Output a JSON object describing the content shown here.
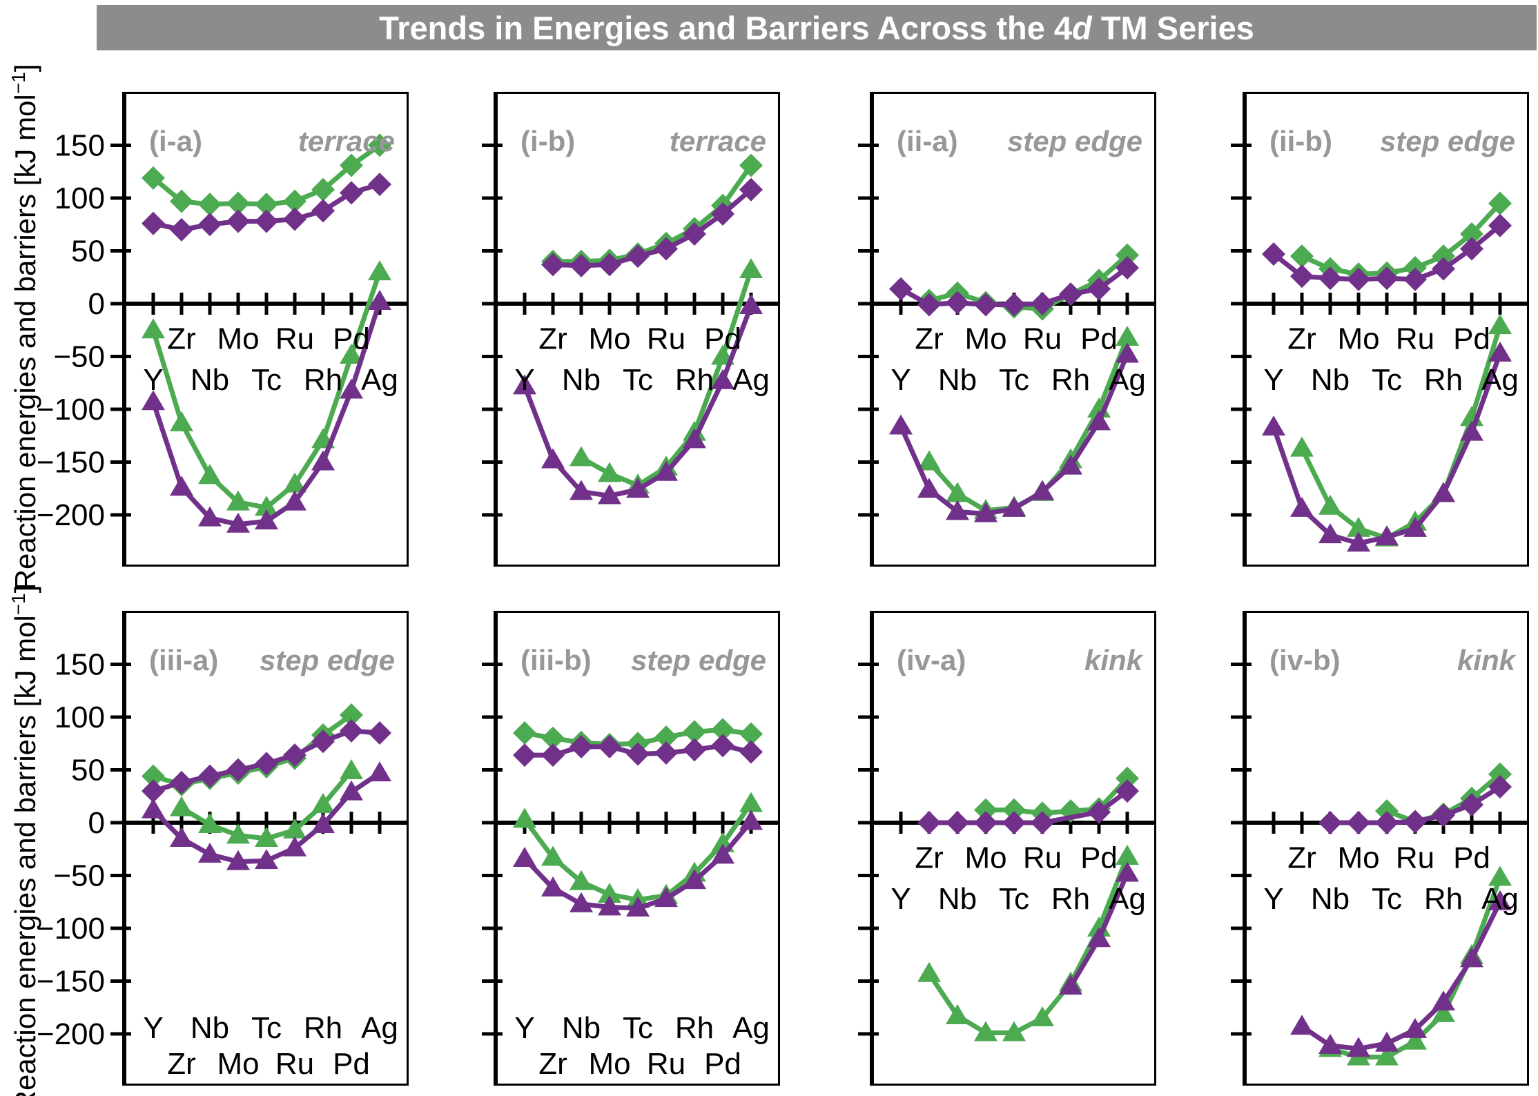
{
  "title": {
    "prefix": "Trends in Energies and Barriers Across the 4",
    "italic": "d",
    "suffix": " TM Series"
  },
  "y_axis_label": {
    "main": "Reaction energies and barriers [kJ mol",
    "sup": "−1",
    "close": "]"
  },
  "colors": {
    "green": "#4CAA50",
    "purple": "#713089",
    "frame": "#000000",
    "label_gray": "#979797",
    "title_bg": "#8C8C8C",
    "title_fg": "#FFFFFF"
  },
  "chart_data": {
    "type": "line",
    "categories": [
      "Y",
      "Zr",
      "Nb",
      "Mo",
      "Tc",
      "Ru",
      "Rh",
      "Pd",
      "Ag"
    ],
    "xlabel": "",
    "ylabel": "Reaction energies and barriers [kJ mol−1]",
    "ylim": [
      -247,
      200
    ],
    "grid": false,
    "legend": "none",
    "y_ticks": [
      {
        "v": 150,
        "label": "150"
      },
      {
        "v": 100,
        "label": "100"
      },
      {
        "v": 50,
        "label": "50"
      },
      {
        "v": 0,
        "label": "0"
      },
      {
        "v": -50,
        "label": "−50"
      },
      {
        "v": -100,
        "label": "−100"
      },
      {
        "v": -150,
        "label": "−150"
      },
      {
        "v": -200,
        "label": "−200"
      }
    ],
    "subplots": [
      {
        "id": "(i-a)",
        "site": "terrace",
        "label_position": "axis",
        "show_y_tick_labels": true,
        "series": [
          {
            "name": "green-triangles",
            "marker": "triangle",
            "color": "green",
            "values": [
              -25,
              -113,
              -163,
              -188,
              -193,
              -171,
              -129,
              -49,
              30
            ]
          },
          {
            "name": "purple-triangles",
            "marker": "triangle",
            "color": "purple",
            "values": [
              -93,
              -174,
              -203,
              -209,
              -206,
              -188,
              -150,
              -82,
              2
            ]
          },
          {
            "name": "green-diamonds",
            "marker": "diamond",
            "color": "green",
            "values": [
              119,
              97,
              94,
              95,
              94,
              97,
              108,
              131,
              150
            ]
          },
          {
            "name": "purple-diamonds",
            "marker": "diamond",
            "color": "purple",
            "values": [
              76,
              70,
              75,
              78,
              78,
              80,
              88,
              105,
              113
            ]
          }
        ]
      },
      {
        "id": "(i-b)",
        "site": "terrace",
        "label_position": "axis",
        "show_y_tick_labels": false,
        "series": [
          {
            "name": "green-triangles",
            "marker": "triangle",
            "color": "green",
            "values": [
              null,
              null,
              -146,
              -161,
              -172,
              -155,
              -122,
              -50,
              32
            ]
          },
          {
            "name": "purple-triangles",
            "marker": "triangle",
            "color": "purple",
            "values": [
              -78,
              -148,
              -178,
              -182,
              -176,
              -160,
              -129,
              -73,
              -2
            ]
          },
          {
            "name": "green-diamonds",
            "marker": "diamond",
            "color": "green",
            "values": [
              null,
              40,
              40,
              41,
              47,
              57,
              71,
              93,
              131
            ]
          },
          {
            "name": "purple-diamonds",
            "marker": "diamond",
            "color": "purple",
            "values": [
              null,
              37,
              36,
              37,
              45,
              52,
              66,
              85,
              108
            ]
          }
        ]
      },
      {
        "id": "(ii-a)",
        "site": "step edge",
        "label_position": "axis",
        "show_y_tick_labels": false,
        "series": [
          {
            "name": "green-triangles",
            "marker": "triangle",
            "color": "green",
            "values": [
              null,
              -150,
              -180,
              -196,
              -193,
              -179,
              -148,
              -100,
              -32
            ]
          },
          {
            "name": "purple-triangles",
            "marker": "triangle",
            "color": "purple",
            "values": [
              -116,
              -176,
              -197,
              -199,
              -194,
              -178,
              -154,
              -112,
              -48
            ]
          },
          {
            "name": "green-diamonds",
            "marker": "diamond",
            "color": "green",
            "values": [
              null,
              3,
              10,
              1,
              -3,
              -5,
              9,
              22,
              46
            ]
          },
          {
            "name": "purple-diamonds",
            "marker": "diamond",
            "color": "purple",
            "values": [
              14,
              -1,
              1,
              -1,
              -1,
              0,
              9,
              14,
              34
            ]
          }
        ]
      },
      {
        "id": "(ii-b)",
        "site": "step edge",
        "label_position": "axis",
        "show_y_tick_labels": false,
        "series": [
          {
            "name": "green-triangles",
            "marker": "triangle",
            "color": "green",
            "values": [
              null,
              -137,
              -192,
              -213,
              -222,
              -207,
              -180,
              -108,
              -21
            ]
          },
          {
            "name": "purple-triangles",
            "marker": "triangle",
            "color": "purple",
            "values": [
              -117,
              -194,
              -219,
              -227,
              -221,
              -213,
              -180,
              -122,
              -47
            ]
          },
          {
            "name": "green-diamonds",
            "marker": "diamond",
            "color": "green",
            "values": [
              null,
              45,
              33,
              28,
              29,
              34,
              45,
              66,
              95
            ]
          },
          {
            "name": "purple-diamonds",
            "marker": "diamond",
            "color": "purple",
            "values": [
              47,
              26,
              24,
              23,
              24,
              23,
              33,
              52,
              74
            ]
          }
        ]
      },
      {
        "id": "(iii-a)",
        "site": "step edge",
        "label_position": "bottom",
        "show_y_tick_labels": true,
        "series": [
          {
            "name": "green-triangles",
            "marker": "triangle",
            "color": "green",
            "values": [
              null,
              14,
              -2,
              -12,
              -15,
              -7,
              17,
              49,
              null
            ]
          },
          {
            "name": "purple-triangles",
            "marker": "triangle",
            "color": "purple",
            "values": [
              12,
              -15,
              -30,
              -37,
              -36,
              -24,
              -2,
              29,
              47
            ]
          },
          {
            "name": "green-diamonds",
            "marker": "diamond",
            "color": "green",
            "values": [
              44,
              36,
              42,
              47,
              53,
              61,
              83,
              102,
              null
            ]
          },
          {
            "name": "purple-diamonds",
            "marker": "diamond",
            "color": "purple",
            "values": [
              30,
              38,
              44,
              50,
              56,
              64,
              77,
              87,
              85
            ]
          }
        ]
      },
      {
        "id": "(iii-b)",
        "site": "step edge",
        "label_position": "bottom",
        "show_y_tick_labels": false,
        "series": [
          {
            "name": "green-triangles",
            "marker": "triangle",
            "color": "green",
            "values": [
              3,
              -33,
              -56,
              -68,
              -73,
              -69,
              -48,
              -20,
              18
            ]
          },
          {
            "name": "purple-triangles",
            "marker": "triangle",
            "color": "purple",
            "values": [
              -34,
              -62,
              -77,
              -80,
              -81,
              -72,
              -55,
              -31,
              1
            ]
          },
          {
            "name": "green-diamonds",
            "marker": "diamond",
            "color": "green",
            "values": [
              85,
              80,
              76,
              74,
              75,
              81,
              86,
              88,
              84
            ]
          },
          {
            "name": "purple-diamonds",
            "marker": "diamond",
            "color": "purple",
            "values": [
              64,
              64,
              72,
              72,
              65,
              66,
              69,
              73,
              67
            ]
          }
        ]
      },
      {
        "id": "(iv-a)",
        "site": "kink",
        "label_position": "axis",
        "show_y_tick_labels": false,
        "series": [
          {
            "name": "green-triangles",
            "marker": "triangle",
            "color": "green",
            "values": [
              null,
              -143,
              -183,
              -199,
              -199,
              -185,
              -152,
              -100,
              -32
            ]
          },
          {
            "name": "purple-triangles",
            "marker": "triangle",
            "color": "purple",
            "values": [
              null,
              null,
              null,
              null,
              null,
              null,
              -155,
              -110,
              -48
            ]
          },
          {
            "name": "green-diamonds",
            "marker": "diamond",
            "color": "green",
            "values": [
              null,
              null,
              null,
              12,
              12,
              9,
              11,
              13,
              42
            ]
          },
          {
            "name": "purple-diamonds",
            "marker": "diamond",
            "color": "purple",
            "values": [
              null,
              0,
              0,
              0,
              0,
              0,
              null,
              10,
              30
            ]
          }
        ]
      },
      {
        "id": "(iv-b)",
        "site": "kink",
        "label_position": "axis",
        "show_y_tick_labels": false,
        "series": [
          {
            "name": "green-triangles",
            "marker": "triangle",
            "color": "green",
            "values": [
              null,
              null,
              -214,
              -222,
              -222,
              -207,
              -181,
              -126,
              -52
            ]
          },
          {
            "name": "purple-triangles",
            "marker": "triangle",
            "color": "purple",
            "values": [
              null,
              -193,
              -211,
              -214,
              -209,
              -196,
              -170,
              -129,
              -75
            ]
          },
          {
            "name": "green-diamonds",
            "marker": "diamond",
            "color": "green",
            "values": [
              null,
              null,
              null,
              null,
              11,
              1,
              8,
              23,
              46
            ]
          },
          {
            "name": "purple-diamonds",
            "marker": "diamond",
            "color": "purple",
            "values": [
              null,
              null,
              0,
              0,
              0,
              1,
              7,
              17,
              34
            ]
          }
        ]
      }
    ]
  }
}
